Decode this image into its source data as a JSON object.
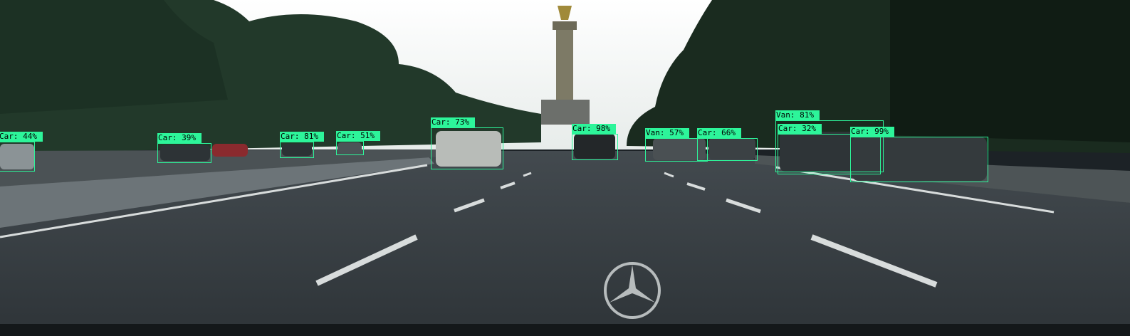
{
  "detections": [
    {
      "label": "Car: 44%"
    },
    {
      "label": "Car: 39%"
    },
    {
      "label": "Car: 81%"
    },
    {
      "label": "Car: 51%"
    },
    {
      "label": "Car: 73%"
    },
    {
      "label": "Car: 98%"
    },
    {
      "label": "Van: 57%"
    },
    {
      "label": "Car: 66%"
    },
    {
      "label": "Van: 81%"
    },
    {
      "label": "Car: 32%"
    },
    {
      "label": "Car: 99%"
    }
  ],
  "colors": {
    "box": "#2df59a",
    "sky": "#f2f4f3",
    "road": "#3a4146",
    "foliage": "#1f3524"
  }
}
